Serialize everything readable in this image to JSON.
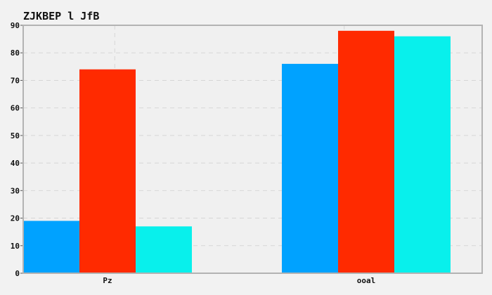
{
  "chart_data": {
    "type": "bar",
    "title": "ZJKBEP l JfB",
    "xlabel": "",
    "ylabel": "",
    "categories": [
      "Pz",
      "ooal"
    ],
    "series": [
      {
        "values": [
          19,
          76
        ],
        "color": "#00a2ff"
      },
      {
        "values": [
          74,
          88
        ],
        "color": "#ff2a00"
      },
      {
        "values": [
          17,
          86
        ],
        "color": "#08f0ec"
      }
    ],
    "ylim": [
      0,
      90
    ],
    "yticks": [
      0,
      10,
      20,
      30,
      40,
      50,
      60,
      70,
      80,
      90
    ],
    "grid": true,
    "legend": "none",
    "background": "#f2f2f2",
    "plot_background": "#f0f0f0"
  }
}
